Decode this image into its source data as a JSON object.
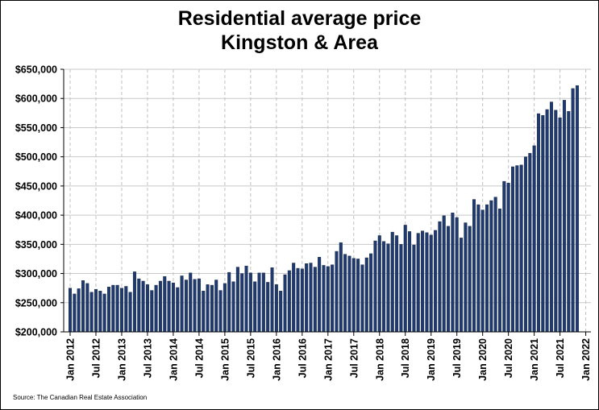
{
  "chart_data": {
    "type": "bar",
    "title": [
      "Residential average price",
      "Kingston & Area"
    ],
    "source": "Source: The Canadian Real Estate Association",
    "ylim": [
      200000,
      650000
    ],
    "yticks": [
      200000,
      250000,
      300000,
      350000,
      400000,
      450000,
      500000,
      550000,
      600000,
      650000
    ],
    "ytick_labels": [
      "$200,000",
      "$250,000",
      "$300,000",
      "$350,000",
      "$400,000",
      "$450,000",
      "$500,000",
      "$550,000",
      "$600,000",
      "$650,000"
    ],
    "xtick_labels": [
      "Jan 2012",
      "Jul 2012",
      "Jan 2013",
      "Jul 2013",
      "Jan 2014",
      "Jul 2014",
      "Jan 2015",
      "Jul 2015",
      "Jan 2016",
      "Jul 2016",
      "Jan 2017",
      "Jul 2017",
      "Jan 2018",
      "Jul 2018",
      "Jan 2019",
      "Jul 2019",
      "Jan 2020",
      "Jul 2020",
      "Jan 2021",
      "Jul 2021",
      "Jan 2022"
    ],
    "grid": {
      "horizontal": true,
      "vertical_dashed": true
    },
    "bar_color": "#1f3a6e",
    "x_start": "Jan 2012",
    "frequency": "monthly",
    "values": [
      275000,
      265000,
      274000,
      288000,
      283000,
      268000,
      273000,
      270000,
      265000,
      277000,
      280000,
      280000,
      275000,
      278000,
      268000,
      303000,
      291000,
      287000,
      281000,
      271000,
      280000,
      287000,
      295000,
      287000,
      284000,
      276000,
      296000,
      289000,
      301000,
      290000,
      291000,
      270000,
      281000,
      280000,
      289000,
      271000,
      283000,
      302000,
      286000,
      311000,
      300000,
      313000,
      301000,
      286000,
      301000,
      301000,
      285000,
      310000,
      281000,
      270000,
      298000,
      305000,
      318000,
      309000,
      308000,
      317000,
      318000,
      311000,
      328000,
      314000,
      312000,
      315000,
      338000,
      353000,
      333000,
      330000,
      326000,
      325000,
      315000,
      327000,
      334000,
      356000,
      365000,
      355000,
      351000,
      371000,
      365000,
      350000,
      383000,
      372000,
      349000,
      369000,
      373000,
      370000,
      366000,
      374000,
      389000,
      399000,
      381000,
      404000,
      396000,
      361000,
      387000,
      381000,
      427000,
      418000,
      409000,
      418000,
      425000,
      431000,
      411000,
      458000,
      455000,
      483000,
      485000,
      486000,
      500000,
      506000,
      519000,
      574000,
      571000,
      581000,
      594000,
      580000,
      567000,
      597000,
      578000,
      617000,
      622000
    ]
  }
}
